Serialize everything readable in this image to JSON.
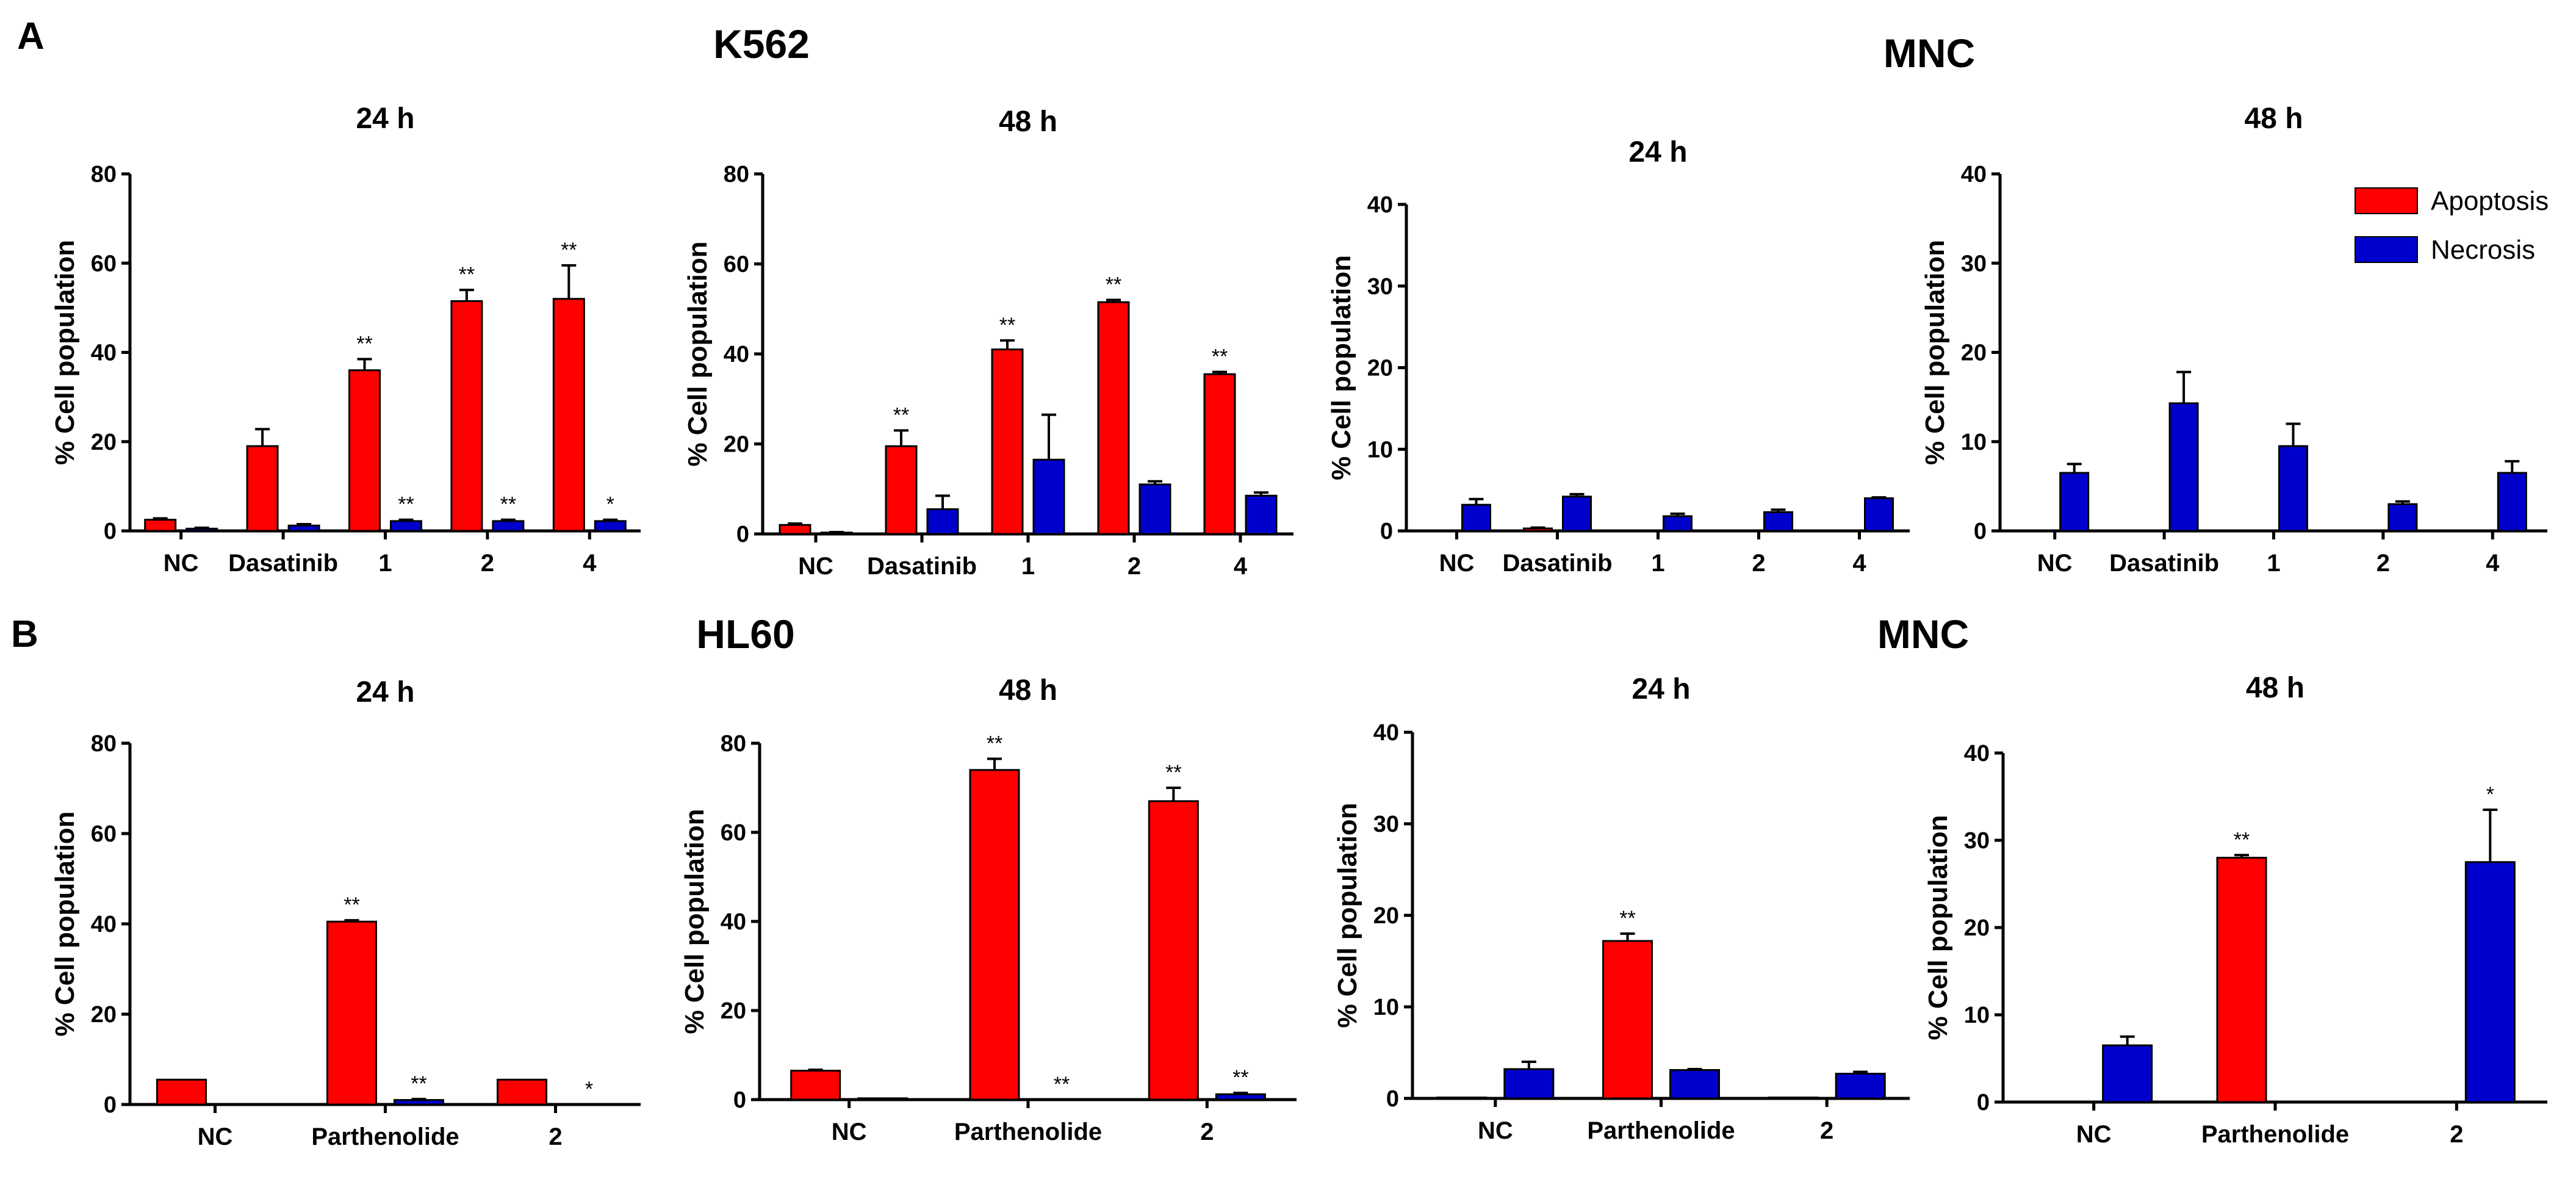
{
  "figure": {
    "panel_labels": [
      "A",
      "B"
    ],
    "group_titles": [
      "K562",
      "MNC",
      "HL60",
      "MNC"
    ],
    "legend": [
      {
        "label": "Apoptosis",
        "color": "#ff0000"
      },
      {
        "label": "Necrosis",
        "color": "#0000cd"
      }
    ],
    "colors": {
      "apoptosis": "#ff0000",
      "necrosis": "#0000cd",
      "axis": "#000000"
    }
  },
  "chart_data": [
    {
      "type": "bar",
      "panel": "A",
      "cell_line": "K562",
      "title": "24 h",
      "ylabel": "% Cell population",
      "ylim": [
        0,
        80
      ],
      "yticks": [
        0,
        20,
        40,
        60,
        80
      ],
      "categories": [
        "NC",
        "Dasatinib",
        "1",
        "2",
        "4"
      ],
      "series": [
        {
          "name": "Apoptosis",
          "values": [
            2.5,
            19,
            36,
            51.5,
            52
          ],
          "errors": [
            0.3,
            3.8,
            2.5,
            2.5,
            7.5
          ],
          "sig": [
            "",
            "",
            "**",
            "**",
            "**"
          ]
        },
        {
          "name": "Necrosis",
          "values": [
            0.5,
            1.2,
            2.2,
            2.2,
            2.2
          ],
          "errors": [
            0.2,
            0.3,
            0.3,
            0.3,
            0.3
          ],
          "sig": [
            "",
            "",
            "**",
            "**",
            "*"
          ]
        }
      ]
    },
    {
      "type": "bar",
      "panel": "A",
      "cell_line": "K562",
      "title": "48 h",
      "ylabel": "% Cell population",
      "ylim": [
        0,
        80
      ],
      "yticks": [
        0,
        20,
        40,
        60,
        80
      ],
      "categories": [
        "NC",
        "Dasatinib",
        "1",
        "2",
        "4"
      ],
      "series": [
        {
          "name": "Apoptosis",
          "values": [
            2,
            19.5,
            41,
            51.5,
            35.5
          ],
          "errors": [
            0.3,
            3.5,
            2.0,
            0.5,
            0.5
          ],
          "sig": [
            "",
            "**",
            "**",
            "**",
            "**"
          ]
        },
        {
          "name": "Necrosis",
          "values": [
            0.3,
            5.5,
            16.5,
            11,
            8.5
          ],
          "errors": [
            0.1,
            3.0,
            10.0,
            0.7,
            0.7
          ],
          "sig": [
            "",
            "",
            "",
            "",
            ""
          ]
        }
      ]
    },
    {
      "type": "bar",
      "panel": "A",
      "cell_line": "MNC",
      "title": "24 h",
      "ylabel": "% Cell population",
      "ylim": [
        0,
        40
      ],
      "yticks": [
        0,
        10,
        20,
        30,
        40
      ],
      "categories": [
        "NC",
        "Dasatinib",
        "1",
        "2",
        "4"
      ],
      "series": [
        {
          "name": "Apoptosis",
          "values": [
            0,
            0.3,
            0,
            0,
            0
          ],
          "errors": [
            0,
            0.1,
            0,
            0,
            0
          ],
          "sig": [
            "",
            "",
            "",
            "",
            ""
          ]
        },
        {
          "name": "Necrosis",
          "values": [
            3.2,
            4.2,
            1.8,
            2.3,
            4
          ],
          "errors": [
            0.7,
            0.3,
            0.3,
            0.3,
            0.1
          ],
          "sig": [
            "",
            "",
            "",
            "",
            ""
          ]
        }
      ]
    },
    {
      "type": "bar",
      "panel": "A",
      "cell_line": "MNC",
      "title": "48 h",
      "ylabel": "% Cell population",
      "ylim": [
        0,
        40
      ],
      "yticks": [
        0,
        10,
        20,
        30,
        40
      ],
      "categories": [
        "NC",
        "Dasatinib",
        "1",
        "2",
        "4"
      ],
      "series": [
        {
          "name": "Apoptosis",
          "values": [
            0,
            0,
            0,
            0,
            0
          ],
          "errors": [
            0,
            0,
            0,
            0,
            0
          ],
          "sig": [
            "",
            "",
            "",
            "",
            ""
          ]
        },
        {
          "name": "Necrosis",
          "values": [
            6.5,
            14.3,
            9.5,
            3,
            6.5
          ],
          "errors": [
            1.0,
            3.5,
            2.5,
            0.3,
            1.3
          ],
          "sig": [
            "",
            "",
            "",
            "",
            ""
          ]
        }
      ]
    },
    {
      "type": "bar",
      "panel": "B",
      "cell_line": "HL60",
      "title": "24 h",
      "ylabel": "% Cell population",
      "ylim": [
        0,
        80
      ],
      "yticks": [
        0,
        20,
        40,
        60,
        80
      ],
      "categories": [
        "NC",
        "Parthenolide",
        "2"
      ],
      "series": [
        {
          "name": "Apoptosis",
          "values": [
            5.5,
            40.5,
            5.5
          ],
          "errors": [
            0,
            0.3,
            0
          ],
          "sig": [
            "",
            "**",
            ""
          ]
        },
        {
          "name": "Necrosis",
          "values": [
            0,
            1,
            0
          ],
          "errors": [
            0,
            0.2,
            0
          ],
          "sig": [
            "",
            "**",
            "*"
          ]
        }
      ]
    },
    {
      "type": "bar",
      "panel": "B",
      "cell_line": "HL60",
      "title": "48 h",
      "ylabel": "% Cell population",
      "ylim": [
        0,
        80
      ],
      "yticks": [
        0,
        20,
        40,
        60,
        80
      ],
      "categories": [
        "NC",
        "Parthenolide",
        "2"
      ],
      "series": [
        {
          "name": "Apoptosis",
          "values": [
            6.5,
            74,
            67
          ],
          "errors": [
            0.2,
            2.5,
            3.0
          ],
          "sig": [
            "",
            "**",
            "**"
          ]
        },
        {
          "name": "Necrosis",
          "values": [
            0.3,
            0,
            1.2
          ],
          "errors": [
            0,
            0,
            0.3
          ],
          "sig": [
            "",
            "**",
            "**"
          ]
        }
      ]
    },
    {
      "type": "bar",
      "panel": "B",
      "cell_line": "MNC",
      "title": "24 h",
      "ylabel": "% Cell population",
      "ylim": [
        0,
        40
      ],
      "yticks": [
        0,
        10,
        20,
        30,
        40
      ],
      "categories": [
        "NC",
        "Parthenolide",
        "2"
      ],
      "series": [
        {
          "name": "Apoptosis",
          "values": [
            0.1,
            17.2,
            0.1
          ],
          "errors": [
            0,
            0.8,
            0
          ],
          "sig": [
            "",
            "**",
            ""
          ]
        },
        {
          "name": "Necrosis",
          "values": [
            3.2,
            3.1,
            2.7
          ],
          "errors": [
            0.8,
            0.1,
            0.2
          ],
          "sig": [
            "",
            "",
            ""
          ]
        }
      ]
    },
    {
      "type": "bar",
      "panel": "B",
      "cell_line": "MNC",
      "title": "48 h",
      "ylabel": "% Cell population",
      "ylim": [
        0,
        40
      ],
      "yticks": [
        0,
        10,
        20,
        30,
        40
      ],
      "categories": [
        "NC",
        "Parthenolide",
        "2"
      ],
      "series": [
        {
          "name": "Apoptosis",
          "values": [
            0,
            28,
            0
          ],
          "errors": [
            0,
            0.3,
            0
          ],
          "sig": [
            "",
            "**",
            ""
          ]
        },
        {
          "name": "Necrosis",
          "values": [
            6.5,
            0,
            27.5
          ],
          "errors": [
            1.0,
            0,
            6.0
          ],
          "sig": [
            "",
            "",
            "*"
          ]
        }
      ]
    }
  ]
}
